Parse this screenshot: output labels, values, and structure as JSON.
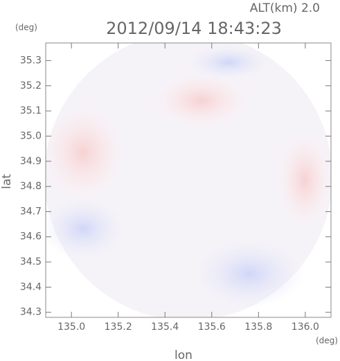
{
  "chart_data": {
    "type": "radar-map",
    "title": "2012/09/14 18:43:23",
    "subtitle": "ALT(km) 2.0",
    "xlabel": "lon",
    "ylabel": "lat",
    "xunit": "(deg)",
    "yunit": "(deg)",
    "xlim": [
      134.89,
      136.11
    ],
    "ylim": [
      34.28,
      35.37
    ],
    "xticks": [
      {
        "value": 135.0,
        "label": "135.0"
      },
      135.2,
      135.4,
      135.6,
      135.8,
      {
        "value": 136.0,
        "label": "136.0"
      }
    ],
    "yticks": [
      34.3,
      34.4,
      34.5,
      34.6,
      34.7,
      34.8,
      34.9,
      {
        "value": 35.0,
        "label": "35.0"
      },
      35.1,
      35.2,
      35.3
    ]
  }
}
